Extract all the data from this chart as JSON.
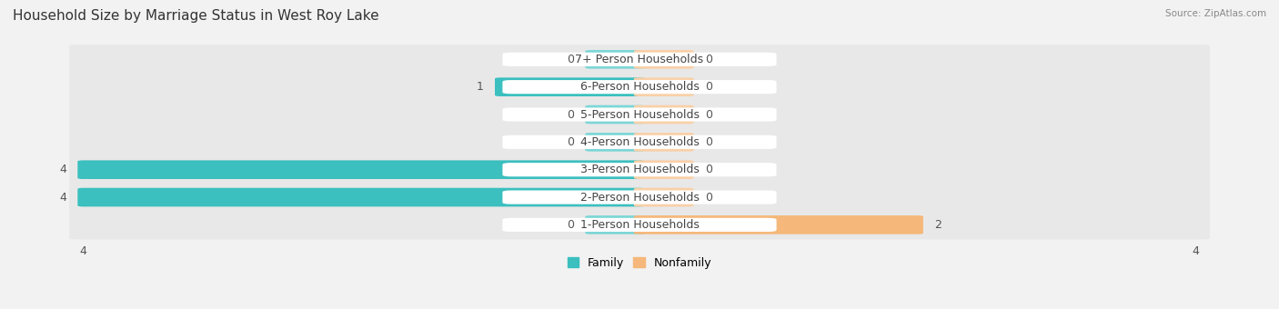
{
  "title": "Household Size by Marriage Status in West Roy Lake",
  "source": "Source: ZipAtlas.com",
  "categories": [
    "7+ Person Households",
    "6-Person Households",
    "5-Person Households",
    "4-Person Households",
    "3-Person Households",
    "2-Person Households",
    "1-Person Households"
  ],
  "family": [
    0,
    1,
    0,
    0,
    4,
    4,
    0
  ],
  "nonfamily": [
    0,
    0,
    0,
    0,
    0,
    0,
    2
  ],
  "family_color": "#3bbfbf",
  "nonfamily_color": "#f5b87a",
  "family_stub_color": "#7dd6d6",
  "nonfamily_stub_color": "#f9d0a8",
  "xlim_left": -4,
  "xlim_right": 4,
  "stub_size": 0.35,
  "background_color": "#f2f2f2",
  "row_color_even": "#ebebeb",
  "row_color_odd": "#e2e2e2",
  "label_fontsize": 9,
  "title_fontsize": 11,
  "legend_family": "Family",
  "legend_nonfamily": "Nonfamily"
}
